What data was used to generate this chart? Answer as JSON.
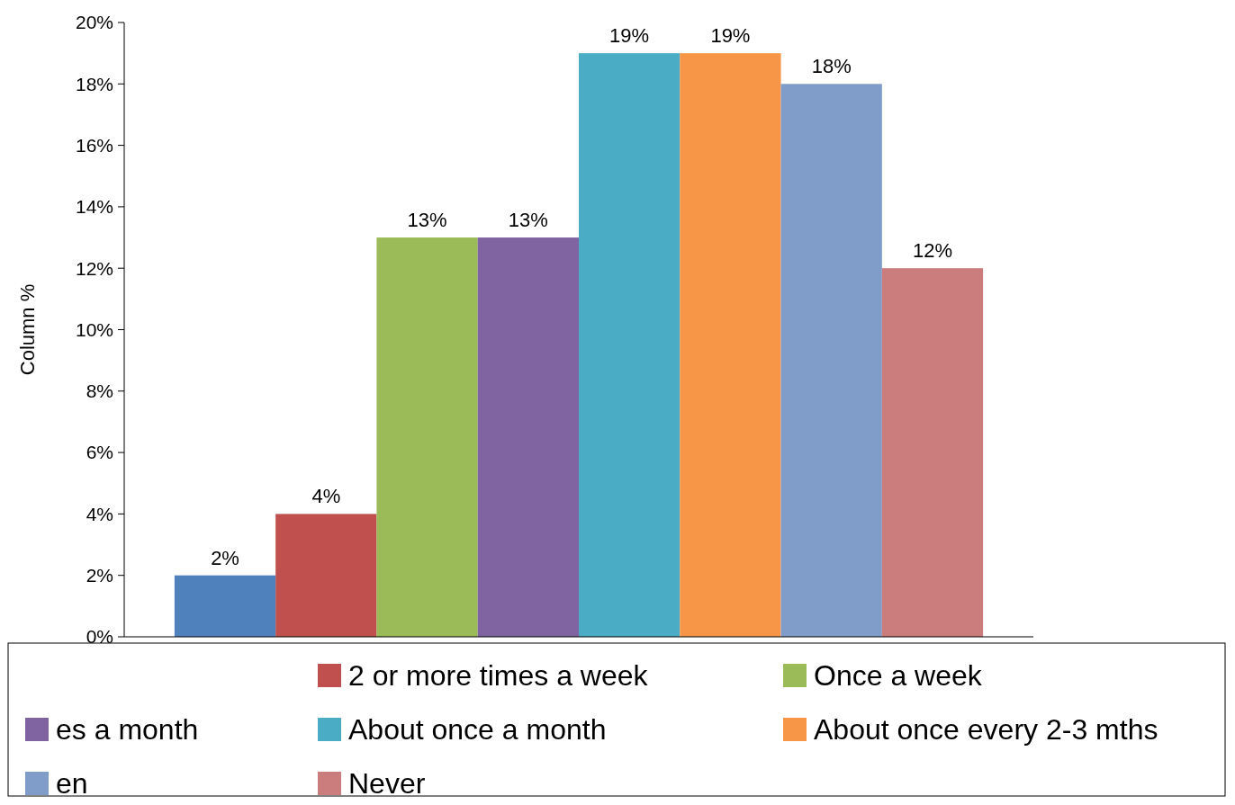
{
  "chart_data": {
    "type": "bar",
    "ylabel": "Column %",
    "categories": [
      null
    ],
    "ylim": [
      0,
      20
    ],
    "yticks": [
      {
        "value": 0,
        "label": "0%"
      },
      {
        "value": 2,
        "label": "2%"
      },
      {
        "value": 4,
        "label": "4%"
      },
      {
        "value": 6,
        "label": "6%"
      },
      {
        "value": 8,
        "label": "8%"
      },
      {
        "value": 10,
        "label": "10%"
      },
      {
        "value": 12,
        "label": "12%"
      },
      {
        "value": 14,
        "label": "14%"
      },
      {
        "value": 16,
        "label": "16%"
      },
      {
        "value": 18,
        "label": "18%"
      },
      {
        "value": 20,
        "label": "20%"
      }
    ],
    "legend": "bottom",
    "grid": false,
    "series": [
      {
        "color": "#4f81bd",
        "values": [
          2
        ],
        "value_labels": [
          "2%"
        ]
      },
      {
        "name": "2 or more times a week",
        "color": "#c0504d",
        "values": [
          4
        ],
        "value_labels": [
          "4%"
        ]
      },
      {
        "name": "Once a week",
        "color": "#9bbb59",
        "values": [
          13
        ],
        "value_labels": [
          "13%"
        ]
      },
      {
        "name": "es a month",
        "color": "#8064a2",
        "values": [
          13
        ],
        "value_labels": [
          "13%"
        ]
      },
      {
        "name": "About once a month",
        "color": "#4bacc6",
        "values": [
          19
        ],
        "value_labels": [
          "19%"
        ]
      },
      {
        "name": "About once every 2-3 mths",
        "color": "#f79646",
        "values": [
          19
        ],
        "value_labels": [
          "19%"
        ]
      },
      {
        "name": "en",
        "color": "#7f9dc8",
        "values": [
          18
        ],
        "value_labels": [
          "18%"
        ]
      },
      {
        "name": "Never",
        "color": "#cb7c7c",
        "values": [
          12
        ],
        "value_labels": [
          "12%"
        ]
      }
    ]
  }
}
